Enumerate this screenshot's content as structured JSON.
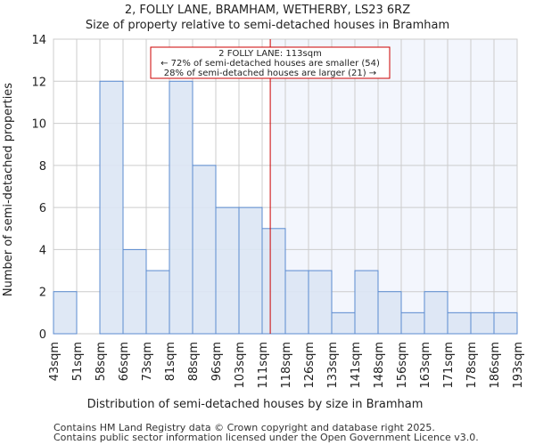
{
  "chart_data": {
    "type": "bar",
    "title": "2, FOLLY LANE, BRAMHAM, WETHERBY, LS23 6RZ",
    "subtitle": "Size of property relative to semi-detached houses in Bramham",
    "xlabel": "Distribution of semi-detached houses by size in Bramham",
    "ylabel": "Number of semi-detached properties",
    "bin_edges": [
      "43sqm",
      "51sqm",
      "58sqm",
      "66sqm",
      "73sqm",
      "81sqm",
      "88sqm",
      "96sqm",
      "103sqm",
      "111sqm",
      "118sqm",
      "126sqm",
      "133sqm",
      "141sqm",
      "148sqm",
      "156sqm",
      "163sqm",
      "171sqm",
      "178sqm",
      "186sqm",
      "193sqm"
    ],
    "values": [
      2,
      0,
      12,
      4,
      3,
      12,
      8,
      6,
      6,
      5,
      3,
      3,
      1,
      3,
      2,
      1,
      2,
      1,
      1,
      1
    ],
    "ylim": [
      0,
      14
    ],
    "yticks": [
      0,
      2,
      4,
      6,
      8,
      10,
      12,
      14
    ],
    "grid": true,
    "marker_bin_position": 9.35,
    "annotation": {
      "line1": "2 FOLLY LANE: 113sqm",
      "line2": "← 72% of semi-detached houses are smaller (54)",
      "line3": "28% of semi-detached houses are larger (21) →"
    },
    "colors": {
      "bar": "#dce6f4",
      "bar_edge": "#5b8bd0",
      "marker": "#cc0000",
      "highlight": "#f3f6fd"
    }
  },
  "footer": {
    "line1": "Contains HM Land Registry data © Crown copyright and database right 2025.",
    "line2": "Contains public sector information licensed under the Open Government Licence v3.0."
  }
}
